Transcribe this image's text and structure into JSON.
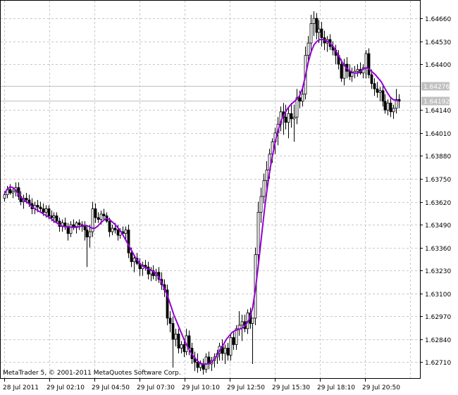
{
  "chart_data": {
    "type": "candlestick",
    "title": "",
    "xlabel": "",
    "ylabel": "",
    "copyright": "MetaTrader 5, © 2001-2011 MetaQuotes Software Corp.",
    "x_ticks": [
      "28 Jul 2011",
      "29 Jul 02:10",
      "29 Jul 04:50",
      "29 Jul 07:30",
      "29 Jul 10:10",
      "29 Jul 12:50",
      "29 Jul 15:30",
      "29 Jul 18:10",
      "29 Jul 20:50"
    ],
    "y_ticks": [
      "1.64660",
      "1.64530",
      "1.64400",
      "1.64276",
      "1.64192",
      "1.64140",
      "1.64010",
      "1.63880",
      "1.63750",
      "1.63620",
      "1.63490",
      "1.63360",
      "1.63230",
      "1.63100",
      "1.62970",
      "1.62840",
      "1.62710"
    ],
    "ylim": [
      1.6262,
      1.6476
    ],
    "price_tags": [
      {
        "label": "1.64276",
        "value": 1.64276
      },
      {
        "label": "1.64192",
        "value": 1.64192
      }
    ],
    "grid": true,
    "colors": {
      "background": "#ffffff",
      "grid": "#c8c8c8",
      "candles": "#000000",
      "moving_average": "#9400d3",
      "price_line": "#c0c0c0",
      "tag_background": "#c0c0c0",
      "tag_text": "#ffffff"
    },
    "candles": [
      [
        1.6364,
        1.6368,
        1.6362,
        1.6366
      ],
      [
        1.6366,
        1.6371,
        1.6364,
        1.6369
      ],
      [
        1.6369,
        1.6372,
        1.6366,
        1.6367
      ],
      [
        1.6367,
        1.637,
        1.6364,
        1.6368
      ],
      [
        1.6368,
        1.6373,
        1.6365,
        1.637
      ],
      [
        1.637,
        1.6373,
        1.6363,
        1.6365
      ],
      [
        1.6365,
        1.6368,
        1.636,
        1.6362
      ],
      [
        1.6362,
        1.6366,
        1.6358,
        1.6364
      ],
      [
        1.6364,
        1.6367,
        1.6361,
        1.6363
      ],
      [
        1.6363,
        1.6366,
        1.6359,
        1.6361
      ],
      [
        1.6361,
        1.6364,
        1.6355,
        1.6358
      ],
      [
        1.6358,
        1.6362,
        1.6355,
        1.636
      ],
      [
        1.636,
        1.6363,
        1.6356,
        1.6359
      ],
      [
        1.6359,
        1.6362,
        1.6356,
        1.6358
      ],
      [
        1.6358,
        1.6361,
        1.6354,
        1.6356
      ],
      [
        1.6356,
        1.636,
        1.6353,
        1.6358
      ],
      [
        1.6358,
        1.636,
        1.6352,
        1.6354
      ],
      [
        1.6354,
        1.6357,
        1.6351,
        1.6353
      ],
      [
        1.6353,
        1.6356,
        1.635,
        1.6354
      ],
      [
        1.6354,
        1.6356,
        1.635,
        1.6351
      ],
      [
        1.6351,
        1.6353,
        1.6345,
        1.6348
      ],
      [
        1.6348,
        1.6352,
        1.6345,
        1.635
      ],
      [
        1.635,
        1.6353,
        1.6346,
        1.6348
      ],
      [
        1.6348,
        1.635,
        1.634,
        1.6344
      ],
      [
        1.6344,
        1.6351,
        1.6342,
        1.6349
      ],
      [
        1.6349,
        1.6352,
        1.6346,
        1.6348
      ],
      [
        1.6348,
        1.6351,
        1.6344,
        1.635
      ],
      [
        1.635,
        1.6352,
        1.6346,
        1.6349
      ],
      [
        1.6349,
        1.6351,
        1.6345,
        1.6348
      ],
      [
        1.6348,
        1.6351,
        1.634,
        1.6346
      ],
      [
        1.6346,
        1.6348,
        1.6325,
        1.6342
      ],
      [
        1.6342,
        1.6349,
        1.6336,
        1.6345
      ],
      [
        1.6345,
        1.6362,
        1.6342,
        1.6358
      ],
      [
        1.6358,
        1.6361,
        1.635,
        1.6353
      ],
      [
        1.6353,
        1.6356,
        1.635,
        1.6352
      ],
      [
        1.6352,
        1.6357,
        1.6349,
        1.6355
      ],
      [
        1.6355,
        1.6358,
        1.6352,
        1.6354
      ],
      [
        1.6354,
        1.6356,
        1.635,
        1.6351
      ],
      [
        1.6351,
        1.6353,
        1.6342,
        1.6345
      ],
      [
        1.6345,
        1.6349,
        1.6343,
        1.6347
      ],
      [
        1.6347,
        1.635,
        1.6344,
        1.6346
      ],
      [
        1.6346,
        1.6349,
        1.634,
        1.6343
      ],
      [
        1.6343,
        1.6347,
        1.6341,
        1.6345
      ],
      [
        1.6345,
        1.6348,
        1.6343,
        1.6344
      ],
      [
        1.6344,
        1.6348,
        1.634,
        1.6346
      ],
      [
        1.6346,
        1.6349,
        1.633,
        1.6333
      ],
      [
        1.6333,
        1.6336,
        1.6325,
        1.6328
      ],
      [
        1.6328,
        1.6332,
        1.6322,
        1.633
      ],
      [
        1.633,
        1.6333,
        1.6326,
        1.6327
      ],
      [
        1.6327,
        1.633,
        1.632,
        1.6324
      ],
      [
        1.6324,
        1.6328,
        1.632,
        1.6326
      ],
      [
        1.6326,
        1.6329,
        1.6323,
        1.6325
      ],
      [
        1.6325,
        1.6328,
        1.6318,
        1.6321
      ],
      [
        1.6321,
        1.6325,
        1.6317,
        1.6323
      ],
      [
        1.6323,
        1.6326,
        1.6318,
        1.632
      ],
      [
        1.632,
        1.6324,
        1.6317,
        1.6322
      ],
      [
        1.6322,
        1.6325,
        1.6316,
        1.6318
      ],
      [
        1.6318,
        1.6322,
        1.6312,
        1.6315
      ],
      [
        1.6315,
        1.6318,
        1.6308,
        1.6312
      ],
      [
        1.6312,
        1.6315,
        1.6292,
        1.6296
      ],
      [
        1.6296,
        1.63,
        1.6288,
        1.6293
      ],
      [
        1.6293,
        1.6297,
        1.6268,
        1.6284
      ],
      [
        1.6284,
        1.629,
        1.628,
        1.6287
      ],
      [
        1.6287,
        1.629,
        1.6276,
        1.6279
      ],
      [
        1.6279,
        1.6283,
        1.6276,
        1.6281
      ],
      [
        1.6281,
        1.6284,
        1.6274,
        1.6277
      ],
      [
        1.6277,
        1.629,
        1.6275,
        1.6286
      ],
      [
        1.6286,
        1.6289,
        1.6275,
        1.6279
      ],
      [
        1.6279,
        1.6282,
        1.627,
        1.6273
      ],
      [
        1.6273,
        1.6277,
        1.6266,
        1.6271
      ],
      [
        1.6271,
        1.6276,
        1.6265,
        1.6268
      ],
      [
        1.6268,
        1.6272,
        1.6266,
        1.627
      ],
      [
        1.627,
        1.6273,
        1.6264,
        1.6267
      ],
      [
        1.6267,
        1.6276,
        1.6265,
        1.6274
      ],
      [
        1.6274,
        1.6277,
        1.6267,
        1.627
      ],
      [
        1.627,
        1.6274,
        1.6266,
        1.6272
      ],
      [
        1.6272,
        1.6276,
        1.6268,
        1.6274
      ],
      [
        1.6274,
        1.6278,
        1.627,
        1.6276
      ],
      [
        1.6276,
        1.6282,
        1.6272,
        1.628
      ],
      [
        1.628,
        1.6284,
        1.6272,
        1.6276
      ],
      [
        1.6276,
        1.6281,
        1.627,
        1.6279
      ],
      [
        1.6279,
        1.6282,
        1.6272,
        1.6275
      ],
      [
        1.6275,
        1.6287,
        1.6272,
        1.6285
      ],
      [
        1.6285,
        1.6288,
        1.6278,
        1.6281
      ],
      [
        1.6281,
        1.6292,
        1.6278,
        1.629
      ],
      [
        1.629,
        1.63,
        1.6286,
        1.6292
      ],
      [
        1.6292,
        1.6298,
        1.6283,
        1.6294
      ],
      [
        1.6294,
        1.6298,
        1.6288,
        1.629
      ],
      [
        1.629,
        1.6301,
        1.6287,
        1.6299
      ],
      [
        1.6299,
        1.6302,
        1.629,
        1.6293
      ],
      [
        1.6293,
        1.6296,
        1.627,
        1.6296
      ],
      [
        1.6296,
        1.6336,
        1.6292,
        1.6332
      ],
      [
        1.6332,
        1.6362,
        1.6328,
        1.6356
      ],
      [
        1.6356,
        1.637,
        1.635,
        1.6365
      ],
      [
        1.6365,
        1.6378,
        1.6361,
        1.6374
      ],
      [
        1.6374,
        1.6385,
        1.6369,
        1.638
      ],
      [
        1.638,
        1.6392,
        1.6375,
        1.6389
      ],
      [
        1.6389,
        1.6398,
        1.6384,
        1.6396
      ],
      [
        1.6396,
        1.6404,
        1.6389,
        1.6401
      ],
      [
        1.6401,
        1.641,
        1.6394,
        1.6406
      ],
      [
        1.6406,
        1.6416,
        1.6402,
        1.6413
      ],
      [
        1.6413,
        1.6418,
        1.64,
        1.641
      ],
      [
        1.641,
        1.6417,
        1.6403,
        1.6407
      ],
      [
        1.6407,
        1.6416,
        1.6398,
        1.6412
      ],
      [
        1.6412,
        1.6418,
        1.6404,
        1.6409
      ],
      [
        1.6409,
        1.6417,
        1.6396,
        1.641
      ],
      [
        1.641,
        1.6426,
        1.6406,
        1.6421
      ],
      [
        1.6421,
        1.6425,
        1.6415,
        1.6419
      ],
      [
        1.6419,
        1.6428,
        1.6416,
        1.6423
      ],
      [
        1.6423,
        1.645,
        1.642,
        1.6445
      ],
      [
        1.6445,
        1.6456,
        1.644,
        1.6452
      ],
      [
        1.6452,
        1.6468,
        1.6447,
        1.6463
      ],
      [
        1.6463,
        1.647,
        1.6456,
        1.6466
      ],
      [
        1.6466,
        1.6469,
        1.6454,
        1.6458
      ],
      [
        1.6458,
        1.6465,
        1.6452,
        1.646
      ],
      [
        1.646,
        1.6464,
        1.645,
        1.6455
      ],
      [
        1.6455,
        1.6459,
        1.6448,
        1.6452
      ],
      [
        1.6452,
        1.6456,
        1.6447,
        1.6454
      ],
      [
        1.6454,
        1.6457,
        1.6448,
        1.645
      ],
      [
        1.645,
        1.6453,
        1.6445,
        1.6448
      ],
      [
        1.6448,
        1.6451,
        1.644,
        1.6445
      ],
      [
        1.6445,
        1.6448,
        1.6437,
        1.644
      ],
      [
        1.644,
        1.6443,
        1.643,
        1.6432
      ],
      [
        1.6432,
        1.6443,
        1.6428,
        1.644
      ],
      [
        1.644,
        1.6444,
        1.6432,
        1.6436
      ],
      [
        1.6436,
        1.644,
        1.6431,
        1.6433
      ],
      [
        1.6433,
        1.6438,
        1.643,
        1.6435
      ],
      [
        1.6435,
        1.6439,
        1.6432,
        1.6436
      ],
      [
        1.6436,
        1.644,
        1.6433,
        1.6437
      ],
      [
        1.6437,
        1.6441,
        1.6434,
        1.6435
      ],
      [
        1.6435,
        1.644,
        1.6432,
        1.6438
      ],
      [
        1.6438,
        1.6448,
        1.6432,
        1.6446
      ],
      [
        1.6446,
        1.6449,
        1.6432,
        1.6434
      ],
      [
        1.6434,
        1.6437,
        1.6426,
        1.6429
      ],
      [
        1.6429,
        1.6432,
        1.6422,
        1.6426
      ],
      [
        1.6426,
        1.643,
        1.6421,
        1.6424
      ],
      [
        1.6424,
        1.6427,
        1.6419,
        1.6425
      ],
      [
        1.6425,
        1.6428,
        1.6416,
        1.6419
      ],
      [
        1.6419,
        1.6423,
        1.6412,
        1.6414
      ],
      [
        1.6414,
        1.642,
        1.6411,
        1.6418
      ],
      [
        1.6418,
        1.6421,
        1.641,
        1.6413
      ],
      [
        1.6413,
        1.6417,
        1.6409,
        1.6415
      ],
      [
        1.6415,
        1.6426,
        1.6412,
        1.642
      ],
      [
        1.642,
        1.6423,
        1.6415,
        1.6419
      ]
    ],
    "moving_average": [
      1.63665,
      1.6369,
      1.63705,
      1.637,
      1.63685,
      1.6366,
      1.6364,
      1.63625,
      1.63615,
      1.636,
      1.63585,
      1.63575,
      1.63565,
      1.63555,
      1.63545,
      1.63535,
      1.63525,
      1.6351,
      1.635,
      1.6349,
      1.6348,
      1.63478,
      1.63478,
      1.63476,
      1.63475,
      1.63476,
      1.6348,
      1.63485,
      1.63486,
      1.6348,
      1.6347,
      1.6347,
      1.63482,
      1.635,
      1.63515,
      1.63525,
      1.6352,
      1.63505,
      1.6349,
      1.6347,
      1.6345,
      1.6342,
      1.6339,
      1.6336,
      1.6333,
      1.633,
      1.6328,
      1.6326,
      1.6325,
      1.6324,
      1.63235,
      1.63225,
      1.6321,
      1.6319,
      1.6316,
      1.6312,
      1.6308,
      1.6303,
      1.6298,
      1.6294,
      1.629,
      1.6286,
      1.6282,
      1.6279,
      1.6276,
      1.6274,
      1.6272,
      1.62705,
      1.627,
      1.627,
      1.62702,
      1.6271,
      1.6273,
      1.62755,
      1.62785,
      1.6281,
      1.6284,
      1.6286,
      1.6288,
      1.6289,
      1.62895,
      1.629,
      1.6291,
      1.6293,
      1.6296,
      1.6302,
      1.6313,
      1.6327,
      1.6342,
      1.6357,
      1.637,
      1.6381,
      1.639,
      1.6398,
      1.6404,
      1.6409,
      1.6412,
      1.6415,
      1.6417,
      1.64185,
      1.642,
      1.6422,
      1.6426,
      1.6433,
      1.6441,
      1.6447,
      1.6451,
      1.6453,
      1.6454,
      1.6454,
      1.64535,
      1.64525,
      1.6451,
      1.6449,
      1.6446,
      1.6443,
      1.644,
      1.6438,
      1.64365,
      1.64355,
      1.6435,
      1.6435,
      1.6436,
      1.64375,
      1.6438,
      1.6437,
      1.64355,
      1.6434,
      1.6432,
      1.643,
      1.6427,
      1.6424,
      1.64215,
      1.642,
      1.64195,
      1.64192
    ]
  }
}
